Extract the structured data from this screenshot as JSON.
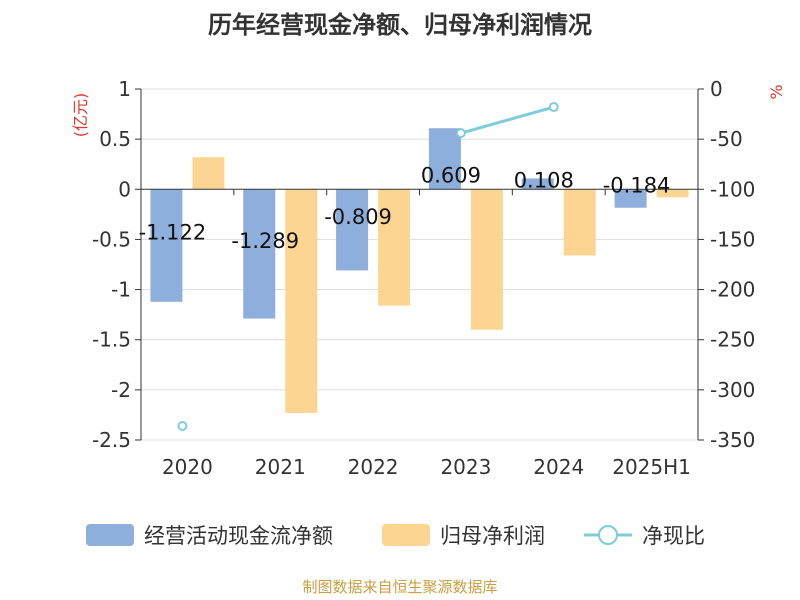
{
  "chart_data": {
    "type": "bar",
    "title": "历年经营现金净额、归母净利润情况",
    "categories": [
      "2020",
      "2021",
      "2022",
      "2023",
      "2024",
      "2025H1"
    ],
    "y_left": {
      "label": "(亿元)",
      "ticks": [
        "1",
        "0.5",
        "0",
        "-0.5",
        "-1",
        "-1.5",
        "-2",
        "-2.5"
      ],
      "ylim": [
        -2.5,
        1
      ]
    },
    "y_right": {
      "label": "%",
      "ticks": [
        "0",
        "-50",
        "-100",
        "-150",
        "-200",
        "-250",
        "-300",
        "-350"
      ],
      "ylim": [
        -350,
        0
      ]
    },
    "series": [
      {
        "name": "经营活动现金流净额",
        "type": "bar",
        "axis": "left",
        "values": [
          -1.122,
          -1.289,
          -0.809,
          0.609,
          0.108,
          -0.184
        ],
        "labels": [
          "-1.122",
          "-1.289",
          "-0.809",
          "0.609",
          "0.108",
          "-0.184"
        ]
      },
      {
        "name": "归母净利润",
        "type": "bar",
        "axis": "left",
        "values": [
          0.32,
          -2.23,
          -1.16,
          -1.4,
          -0.66,
          -0.08
        ]
      },
      {
        "name": "净现比",
        "type": "line",
        "axis": "right",
        "values": [
          -336,
          null,
          null,
          -44,
          -18,
          null
        ]
      }
    ],
    "colors": {
      "bar1": "#8eaedc",
      "bar2": "#fdd592",
      "line": "#7fcdd8",
      "title": "#333333",
      "source": "#c9a043",
      "axis_label": "#e8352d",
      "tick": "#333333",
      "grid": "#dddddd",
      "axis": "#333333"
    },
    "legend_position": "bottom",
    "grid": true
  },
  "footer": {
    "source": "制图数据来自恒生聚源数据库"
  }
}
